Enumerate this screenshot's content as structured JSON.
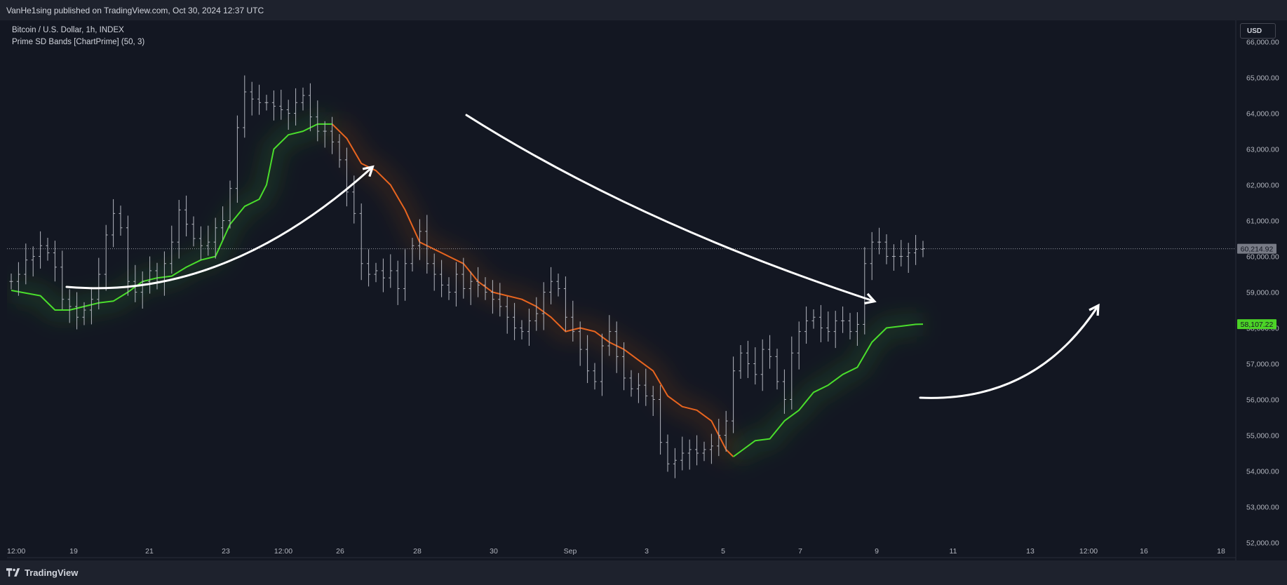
{
  "header": {
    "published_text": "VanHe1sing published on TradingView.com, Oct 30, 2024 12:37 UTC"
  },
  "legend": {
    "symbol_line": "Bitcoin / U.S. Dollar, 1h, INDEX",
    "indicator_line": "Prime SD Bands [ChartPrime] (50, 3)"
  },
  "currency_button": {
    "label": "USD"
  },
  "footer": {
    "brand": "TradingView",
    "brand_icon": "tradingview-logo-icon"
  },
  "colors": {
    "background": "#131722",
    "bullish_band": "#4ade2c",
    "bearish_band": "#e8651f",
    "price_bars": "#b2b5be",
    "last_price_label": "#787b86",
    "band_price_label": "#4cd327",
    "arrows": "#ffffff"
  },
  "chart_data": {
    "type": "line",
    "title": "",
    "xlabel": "",
    "ylabel": "",
    "ylim": [
      51500,
      66600
    ],
    "x_ticks": [
      "12:00",
      "19",
      "21",
      "23",
      "12:00",
      "26",
      "28",
      "30",
      "Sep",
      "3",
      "5",
      "7",
      "9",
      "11",
      "13",
      "12:00",
      "16",
      "18"
    ],
    "y_ticks": [
      "66,000.00",
      "65,000.00",
      "64,000.00",
      "63,000.00",
      "62,000.00",
      "61,000.00",
      "60,000.00",
      "59,000.00",
      "58,000.00",
      "57,000.00",
      "56,000.00",
      "55,000.00",
      "54,000.00",
      "53,000.00",
      "52,000.00"
    ],
    "last_price": {
      "value": 60214.92,
      "label": "60,214.92"
    },
    "band_last": {
      "value": 58107.22,
      "label": "58,107.22"
    },
    "price_close_series": [
      [
        0,
        59300
      ],
      [
        1,
        59500
      ],
      [
        2,
        59900
      ],
      [
        3,
        60000
      ],
      [
        4,
        60300
      ],
      [
        5,
        60100
      ],
      [
        6,
        59700
      ],
      [
        7,
        58800
      ],
      [
        8,
        58600
      ],
      [
        9,
        58300
      ],
      [
        10,
        58500
      ],
      [
        11,
        58800
      ],
      [
        12,
        59500
      ],
      [
        13,
        60600
      ],
      [
        14,
        61200
      ],
      [
        15,
        60800
      ],
      [
        16,
        59300
      ],
      [
        17,
        59000
      ],
      [
        18,
        59300
      ],
      [
        19,
        59600
      ],
      [
        20,
        59300
      ],
      [
        21,
        59800
      ],
      [
        22,
        60400
      ],
      [
        23,
        61300
      ],
      [
        24,
        60900
      ],
      [
        25,
        60500
      ],
      [
        26,
        60300
      ],
      [
        27,
        60400
      ],
      [
        28,
        60800
      ],
      [
        29,
        61000
      ],
      [
        30,
        61900
      ],
      [
        31,
        63600
      ],
      [
        32,
        64600
      ],
      [
        33,
        64400
      ],
      [
        34,
        64300
      ],
      [
        35,
        64300
      ],
      [
        36,
        64200
      ],
      [
        37,
        64100
      ],
      [
        38,
        64000
      ],
      [
        39,
        64300
      ],
      [
        40,
        64500
      ],
      [
        41,
        63900
      ],
      [
        42,
        63500
      ],
      [
        43,
        63500
      ],
      [
        44,
        63200
      ],
      [
        45,
        62700
      ],
      [
        46,
        61800
      ],
      [
        47,
        61200
      ],
      [
        48,
        59800
      ],
      [
        49,
        59500
      ],
      [
        50,
        59600
      ],
      [
        51,
        59400
      ],
      [
        52,
        59600
      ],
      [
        53,
        59100
      ],
      [
        54,
        59800
      ],
      [
        55,
        60300
      ],
      [
        56,
        60700
      ],
      [
        57,
        59800
      ],
      [
        58,
        59500
      ],
      [
        59,
        59200
      ],
      [
        60,
        59000
      ],
      [
        61,
        59500
      ],
      [
        62,
        59100
      ],
      [
        63,
        59300
      ],
      [
        64,
        59200
      ],
      [
        65,
        59000
      ],
      [
        66,
        58800
      ],
      [
        67,
        58600
      ],
      [
        68,
        58300
      ],
      [
        69,
        58000
      ],
      [
        70,
        57900
      ],
      [
        71,
        58200
      ],
      [
        72,
        58400
      ],
      [
        73,
        59000
      ],
      [
        74,
        59300
      ],
      [
        75,
        59100
      ],
      [
        76,
        58300
      ],
      [
        77,
        57900
      ],
      [
        78,
        57400
      ],
      [
        79,
        56800
      ],
      [
        80,
        56500
      ],
      [
        81,
        57500
      ],
      [
        82,
        57900
      ],
      [
        83,
        57200
      ],
      [
        84,
        56600
      ],
      [
        85,
        56300
      ],
      [
        86,
        56400
      ],
      [
        87,
        56100
      ],
      [
        88,
        56000
      ],
      [
        89,
        54800
      ],
      [
        90,
        54200
      ],
      [
        91,
        54300
      ],
      [
        92,
        54500
      ],
      [
        93,
        54600
      ],
      [
        94,
        54500
      ],
      [
        95,
        54600
      ],
      [
        96,
        54700
      ],
      [
        97,
        55000
      ],
      [
        98,
        55400
      ],
      [
        99,
        56800
      ],
      [
        100,
        57300
      ],
      [
        101,
        57000
      ],
      [
        102,
        56700
      ],
      [
        103,
        57400
      ],
      [
        104,
        57200
      ],
      [
        105,
        56500
      ],
      [
        106,
        56000
      ],
      [
        107,
        57300
      ],
      [
        108,
        57900
      ],
      [
        109,
        58200
      ],
      [
        110,
        58300
      ],
      [
        111,
        58000
      ],
      [
        112,
        57900
      ],
      [
        113,
        58200
      ],
      [
        114,
        58200
      ],
      [
        115,
        57900
      ],
      [
        116,
        58100
      ],
      [
        117,
        59800
      ],
      [
        118,
        60400
      ],
      [
        119,
        60400
      ],
      [
        120,
        60000
      ],
      [
        121,
        60000
      ],
      [
        122,
        60000
      ],
      [
        123,
        60100
      ],
      [
        124,
        60200
      ],
      [
        125,
        60215
      ]
    ],
    "series": [
      {
        "x": [
          0,
          4,
          6,
          8,
          12,
          14,
          16,
          18,
          20,
          22,
          24,
          26,
          27,
          28,
          30,
          32,
          33,
          34,
          35,
          36,
          38,
          40,
          41,
          42,
          44
        ],
        "values": [
          59050,
          58900,
          58500,
          58500,
          58700,
          58750,
          59000,
          59300,
          59400,
          59450,
          59700,
          59900,
          59950,
          60000,
          60900,
          61400,
          61500,
          61600,
          62000,
          63000,
          63400,
          63500,
          63600,
          63700,
          63700
        ]
      },
      {
        "x": [
          44,
          46,
          48,
          50,
          52,
          54,
          56,
          58,
          60,
          62,
          64,
          66,
          68,
          70,
          72,
          74,
          76,
          78,
          80,
          82,
          84,
          86,
          88,
          90,
          92,
          94,
          96,
          97,
          98,
          99
        ],
        "values": [
          63700,
          63300,
          62600,
          62400,
          62000,
          61300,
          60400,
          60200,
          60000,
          59800,
          59300,
          59000,
          58900,
          58800,
          58600,
          58300,
          57900,
          58000,
          57900,
          57600,
          57400,
          57100,
          56800,
          56100,
          55800,
          55700,
          55400,
          55000,
          54600,
          54400
        ]
      },
      {
        "x": [
          99,
          100,
          102,
          104,
          106,
          108,
          110,
          112,
          114,
          116,
          118,
          120,
          122,
          124,
          125
        ],
        "values": [
          54400,
          54550,
          54850,
          54900,
          55400,
          55700,
          56200,
          56400,
          56700,
          56900,
          57600,
          58000,
          58050,
          58100,
          58107
        ]
      }
    ],
    "grid": false,
    "legend_position": "top-left"
  }
}
